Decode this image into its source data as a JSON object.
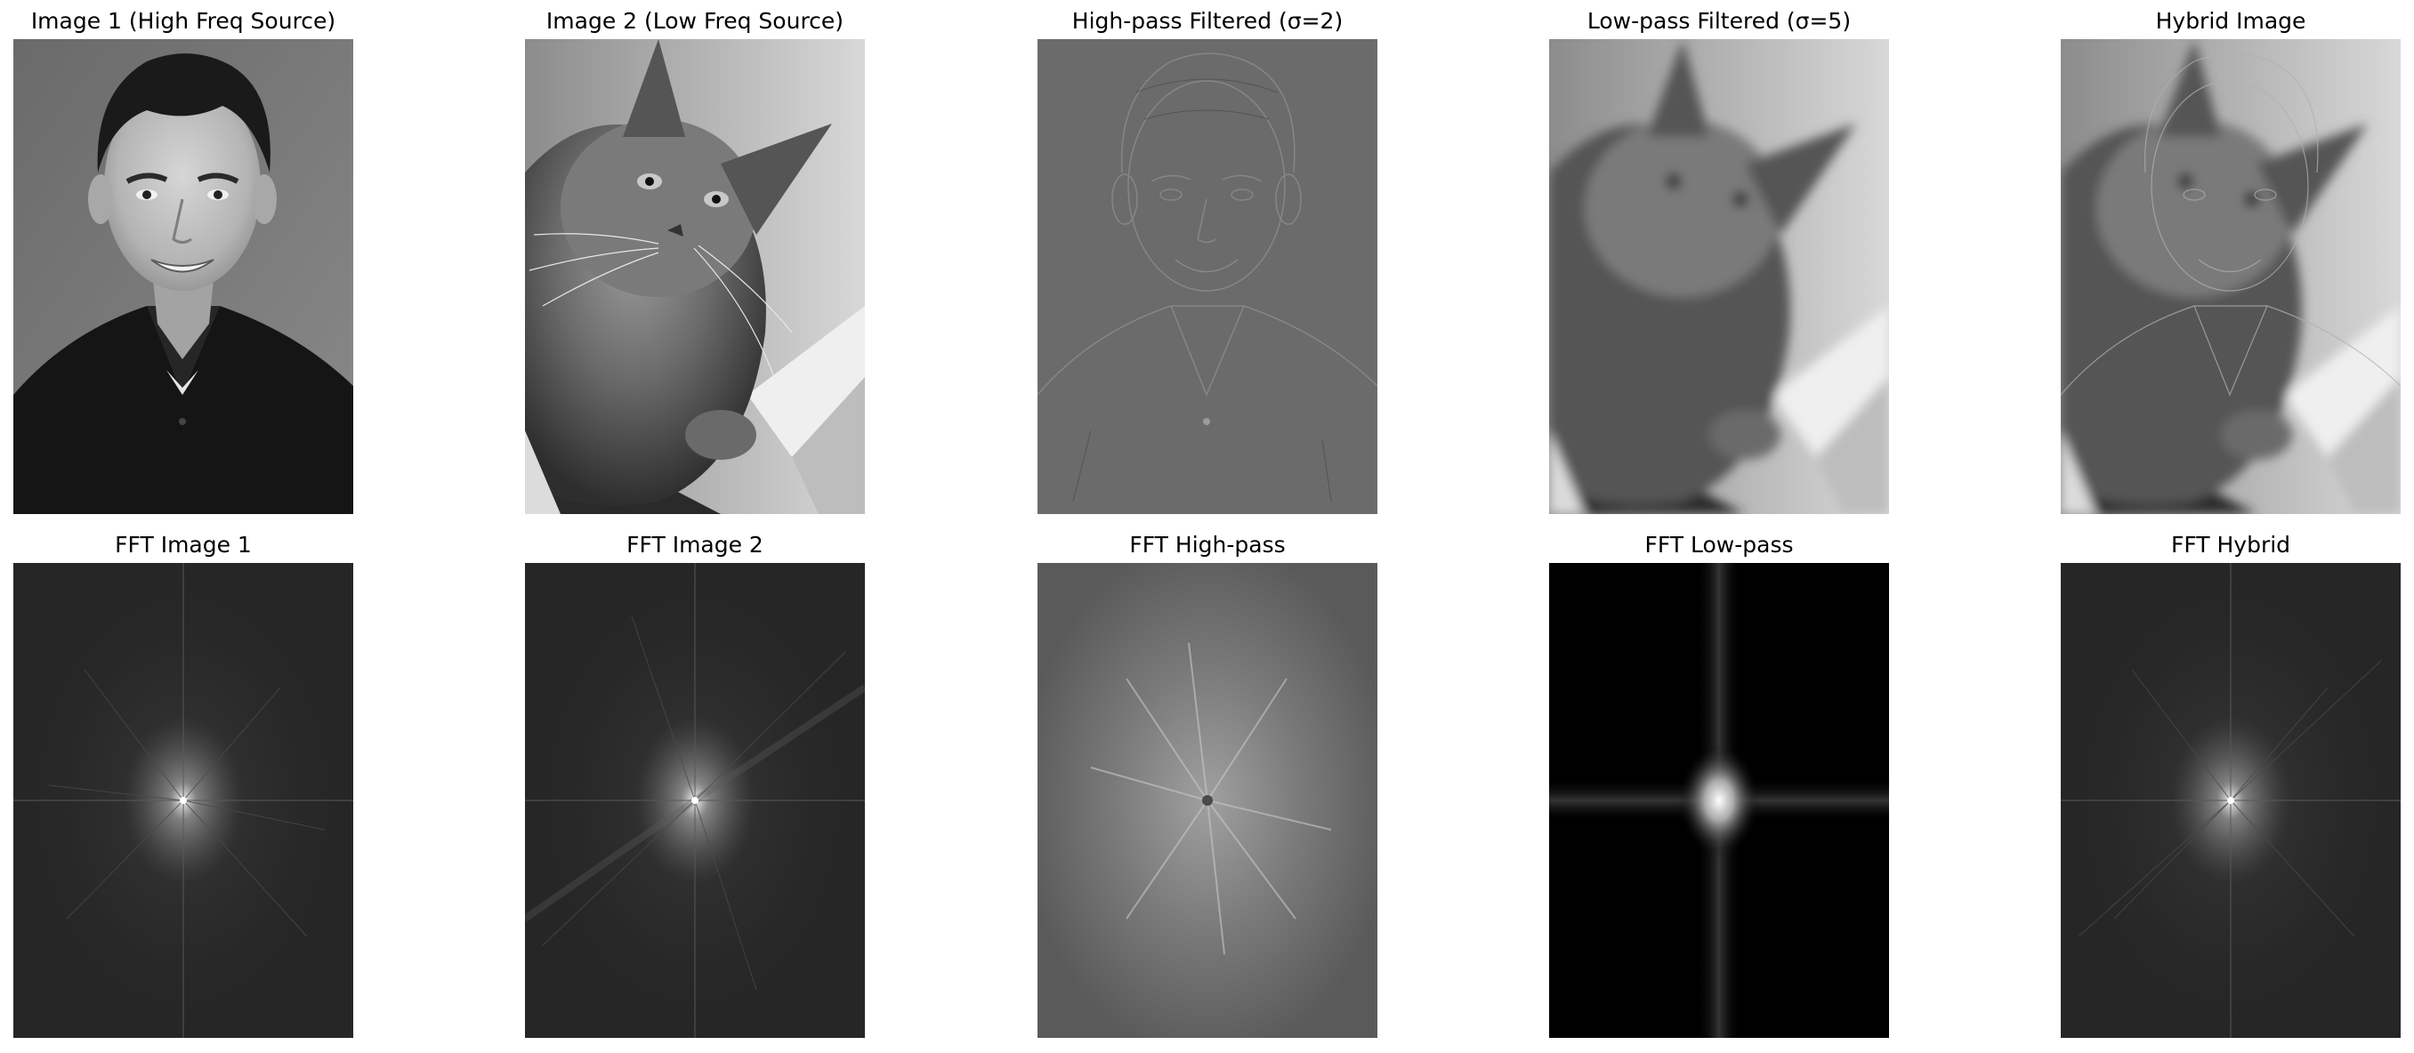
{
  "figure": {
    "panels": [
      {
        "id": "img1",
        "title": "Image 1 (High Freq Source)",
        "content": "portrait"
      },
      {
        "id": "img2",
        "title": "Image 2 (Low Freq Source)",
        "content": "cat"
      },
      {
        "id": "highpass",
        "title": "High-pass Filtered (σ=2)",
        "content": "edges"
      },
      {
        "id": "lowpass",
        "title": "Low-pass Filtered (σ=5)",
        "content": "blurred-cat"
      },
      {
        "id": "hybrid",
        "title": "Hybrid Image",
        "content": "hybrid"
      },
      {
        "id": "fft1",
        "title": "FFT Image 1",
        "content": "fft-spectrum"
      },
      {
        "id": "fft2",
        "title": "FFT Image 2",
        "content": "fft-spectrum"
      },
      {
        "id": "fft_high",
        "title": "FFT High-pass",
        "content": "fft-spectrum"
      },
      {
        "id": "fft_low",
        "title": "FFT Low-pass",
        "content": "fft-spectrum"
      },
      {
        "id": "fft_hybrid",
        "title": "FFT Hybrid",
        "content": "fft-spectrum"
      }
    ]
  }
}
